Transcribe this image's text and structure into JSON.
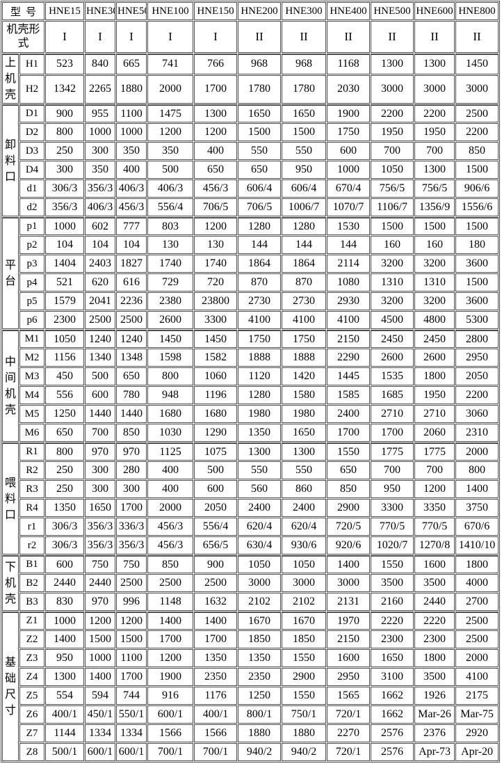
{
  "colors": {
    "background": "#ffffff",
    "border": "#4d4d4d",
    "text": "#000000"
  },
  "table": {
    "corner_label": "型号",
    "models": [
      "HNE15",
      "HNE30",
      "HNE50",
      "HNE100",
      "HNE150",
      "HNE200",
      "HNE300",
      "HNE400",
      "HNE500",
      "HNE600",
      "HNE800"
    ],
    "form_row": {
      "label": "机壳形式",
      "values": [
        "I",
        "I",
        "I",
        "I",
        "I",
        "II",
        "II",
        "II",
        "II",
        "II",
        "II"
      ]
    },
    "groups": [
      {
        "name": "上机壳",
        "rows": [
          {
            "label": "H1",
            "values": [
              "523",
              "840",
              "665",
              "741",
              "766",
              "968",
              "968",
              "1168",
              "1300",
              "1300",
              "1450"
            ]
          },
          {
            "label": "H2",
            "values": [
              "1342",
              "2265",
              "1880",
              "2000",
              "1700",
              "1780",
              "1780",
              "2030",
              "3000",
              "3000",
              "3000"
            ]
          }
        ]
      },
      {
        "name": "卸料口",
        "rows": [
          {
            "label": "D1",
            "values": [
              "900",
              "955",
              "1100",
              "1475",
              "1300",
              "1650",
              "1650",
              "1900",
              "2200",
              "2200",
              "2500"
            ]
          },
          {
            "label": "D2",
            "values": [
              "800",
              "1000",
              "1000",
              "1200",
              "1200",
              "1500",
              "1500",
              "1750",
              "1950",
              "1950",
              "2200"
            ]
          },
          {
            "label": "D3",
            "values": [
              "250",
              "300",
              "350",
              "350",
              "400",
              "550",
              "550",
              "600",
              "700",
              "700",
              "850"
            ]
          },
          {
            "label": "D4",
            "values": [
              "300",
              "350",
              "400",
              "500",
              "650",
              "650",
              "950",
              "1000",
              "1050",
              "1300",
              "1500"
            ]
          },
          {
            "label": "d1",
            "values": [
              "306/3",
              "356/3",
              "406/3",
              "406/3",
              "456/3",
              "606/4",
              "606/4",
              "670/4",
              "756/5",
              "756/5",
              "906/6"
            ]
          },
          {
            "label": "d2",
            "values": [
              "356/3",
              "406/3",
              "456/3",
              "556/4",
              "706/5",
              "706/5",
              "1006/7",
              "1070/7",
              "1106/7",
              "1356/9",
              "1556/6"
            ]
          }
        ]
      },
      {
        "name": "平台",
        "rows": [
          {
            "label": "p1",
            "values": [
              "1000",
              "602",
              "777",
              "803",
              "1200",
              "1280",
              "1280",
              "1530",
              "1500",
              "1500",
              "1500"
            ]
          },
          {
            "label": "p2",
            "values": [
              "104",
              "104",
              "104",
              "130",
              "130",
              "144",
              "144",
              "144",
              "160",
              "160",
              "180"
            ]
          },
          {
            "label": "p3",
            "values": [
              "1404",
              "2403",
              "1827",
              "1740",
              "1740",
              "1864",
              "1864",
              "2114",
              "3200",
              "3200",
              "3600"
            ]
          },
          {
            "label": "p4",
            "values": [
              "521",
              "620",
              "616",
              "729",
              "720",
              "870",
              "870",
              "1080",
              "1310",
              "1310",
              "1500"
            ]
          },
          {
            "label": "p5",
            "values": [
              "1579",
              "2041",
              "2236",
              "2380",
              "23800",
              "2730",
              "2730",
              "2930",
              "3200",
              "3200",
              "3600"
            ]
          },
          {
            "label": "p6",
            "values": [
              "2300",
              "2500",
              "2500",
              "2600",
              "3300",
              "4100",
              "4100",
              "4100",
              "4500",
              "4800",
              "5300"
            ]
          }
        ]
      },
      {
        "name": "中间机壳",
        "rows": [
          {
            "label": "M1",
            "values": [
              "1050",
              "1240",
              "1240",
              "1450",
              "1450",
              "1750",
              "1750",
              "2150",
              "2450",
              "2450",
              "2800"
            ]
          },
          {
            "label": "M2",
            "values": [
              "1156",
              "1340",
              "1348",
              "1598",
              "1582",
              "1888",
              "1888",
              "2290",
              "2600",
              "2600",
              "2950"
            ]
          },
          {
            "label": "M3",
            "values": [
              "450",
              "500",
              "650",
              "800",
              "1060",
              "1120",
              "1420",
              "1445",
              "1535",
              "1800",
              "2050"
            ]
          },
          {
            "label": "M4",
            "values": [
              "556",
              "600",
              "780",
              "948",
              "1196",
              "1280",
              "1580",
              "1585",
              "1685",
              "1950",
              "2200"
            ]
          },
          {
            "label": "M5",
            "values": [
              "1250",
              "1440",
              "1440",
              "1680",
              "1680",
              "1980",
              "1980",
              "2400",
              "2710",
              "2710",
              "3060"
            ]
          },
          {
            "label": "M6",
            "values": [
              "650",
              "700",
              "850",
              "1030",
              "1290",
              "1350",
              "1650",
              "1700",
              "1700",
              "2060",
              "2310"
            ]
          }
        ]
      },
      {
        "name": "喂料口",
        "rows": [
          {
            "label": "R1",
            "values": [
              "800",
              "970",
              "970",
              "1125",
              "1075",
              "1300",
              "1300",
              "1550",
              "1775",
              "1775",
              "2000"
            ]
          },
          {
            "label": "R2",
            "values": [
              "250",
              "300",
              "280",
              "400",
              "500",
              "550",
              "550",
              "650",
              "700",
              "700",
              "800"
            ]
          },
          {
            "label": "R3",
            "values": [
              "250",
              "300",
              "300",
              "400",
              "600",
              "560",
              "860",
              "850",
              "950",
              "1200",
              "1400"
            ]
          },
          {
            "label": "R4",
            "values": [
              "1350",
              "1650",
              "1700",
              "2000",
              "2050",
              "2400",
              "2400",
              "2900",
              "3300",
              "3350",
              "3750"
            ]
          },
          {
            "label": "r1",
            "values": [
              "306/3",
              "356/3",
              "336/3",
              "456/3",
              "556/4",
              "620/4",
              "620/4",
              "720/5",
              "770/5",
              "770/5",
              "670/6"
            ]
          },
          {
            "label": "r2",
            "values": [
              "306/3",
              "356/3",
              "356/3",
              "456/3",
              "656/5",
              "630/4",
              "930/6",
              "920/6",
              "1020/7",
              "1270/8",
              "1410/10"
            ]
          }
        ]
      },
      {
        "name": "下机壳",
        "rows": [
          {
            "label": "B1",
            "values": [
              "600",
              "750",
              "750",
              "850",
              "900",
              "1050",
              "1050",
              "1400",
              "1550",
              "1600",
              "1800"
            ]
          },
          {
            "label": "B2",
            "values": [
              "2440",
              "2440",
              "2500",
              "2500",
              "2500",
              "3000",
              "3000",
              "3000",
              "3500",
              "3500",
              "4000"
            ]
          },
          {
            "label": "B3",
            "values": [
              "830",
              "970",
              "996",
              "1148",
              "1632",
              "2102",
              "2102",
              "2131",
              "2160",
              "2440",
              "2700"
            ]
          }
        ]
      },
      {
        "name": "基础尺寸",
        "rows": [
          {
            "label": "Z1",
            "values": [
              "1000",
              "1200",
              "1200",
              "1400",
              "1400",
              "1670",
              "1670",
              "1970",
              "2220",
              "2220",
              "2500"
            ]
          },
          {
            "label": "Z2",
            "values": [
              "1400",
              "1500",
              "1500",
              "1700",
              "1700",
              "1850",
              "1850",
              "2150",
              "2300",
              "2300",
              "2500"
            ]
          },
          {
            "label": "Z3",
            "values": [
              "950",
              "1000",
              "1100",
              "1200",
              "1350",
              "1350",
              "1550",
              "1600",
              "1650",
              "1800",
              "2000"
            ]
          },
          {
            "label": "Z4",
            "values": [
              "1300",
              "1400",
              "1700",
              "1900",
              "2350",
              "2350",
              "2900",
              "2950",
              "3100",
              "3500",
              "4100"
            ]
          },
          {
            "label": "Z5",
            "values": [
              "554",
              "594",
              "744",
              "916",
              "1176",
              "1250",
              "1550",
              "1565",
              "1662",
              "1926",
              "2175"
            ]
          },
          {
            "label": "Z6",
            "values": [
              "400/1",
              "450/1",
              "550/1",
              "600/1",
              "400/1",
              "800/1",
              "750/1",
              "720/1",
              "1662",
              "Mar-26",
              "Mar-75"
            ]
          },
          {
            "label": "Z7",
            "values": [
              "1144",
              "1334",
              "1334",
              "1566",
              "1566",
              "1880",
              "1880",
              "2270",
              "2576",
              "2376",
              "2920"
            ]
          },
          {
            "label": "Z8",
            "values": [
              "500/1",
              "600/1",
              "600/1",
              "700/1",
              "700/1",
              "940/2",
              "940/2",
              "720/1",
              "2576",
              "Apr-73",
              "Apr-20"
            ]
          }
        ]
      }
    ]
  }
}
